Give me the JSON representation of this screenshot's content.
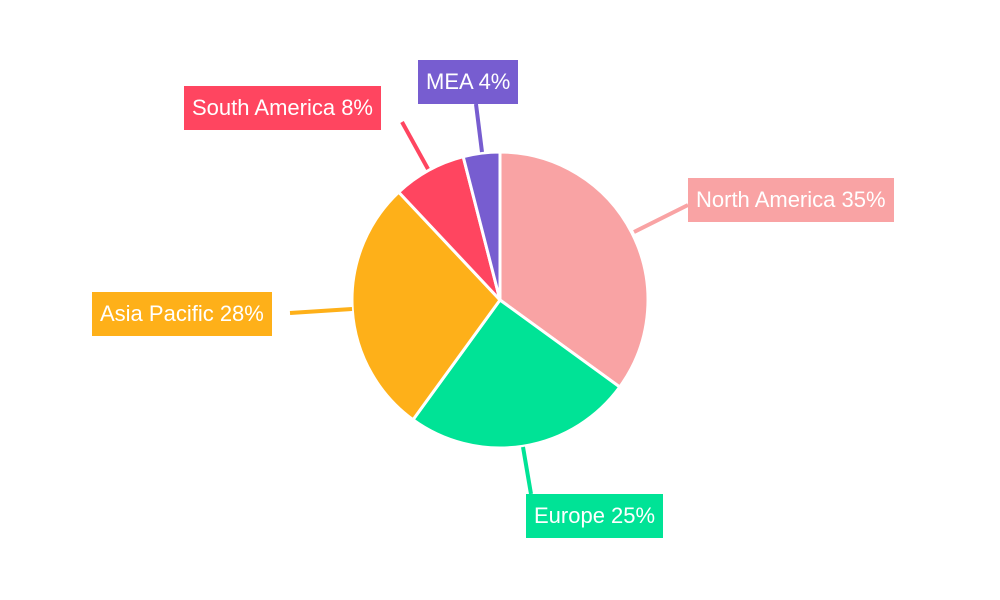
{
  "chart_data": {
    "type": "pie",
    "categories": [
      "North America",
      "Europe",
      "Asia Pacific",
      "South America",
      "MEA"
    ],
    "values": [
      35,
      25,
      28,
      8,
      4
    ],
    "labels": [
      "North America 35%",
      "Europe 25%",
      "Asia Pacific 28%",
      "South America 8%",
      "MEA 4%"
    ],
    "colors": [
      "#f9a3a4",
      "#00e396",
      "#feb019",
      "#ff4560",
      "#775dd0"
    ],
    "start_angle": "12 o'clock",
    "direction": "clockwise",
    "legend": "none"
  }
}
